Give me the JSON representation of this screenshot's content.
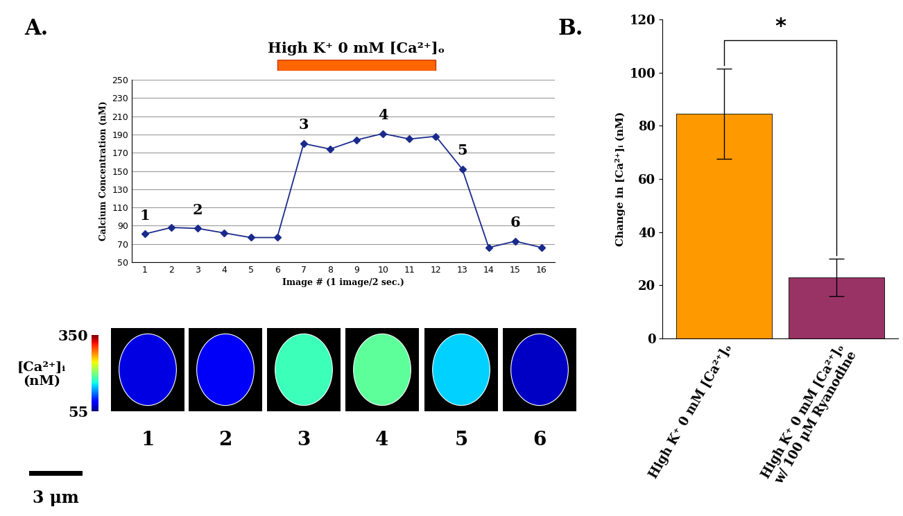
{
  "chart_data": [
    {
      "type": "line",
      "panel_label": "A.",
      "x_label": "Image # (1 image/2 sec.)",
      "y_label": "Calcium Concentration (nM)",
      "x": [
        1,
        2,
        3,
        4,
        5,
        6,
        7,
        8,
        9,
        10,
        11,
        12,
        13,
        14,
        15,
        16
      ],
      "values": [
        81,
        88,
        87,
        82,
        77,
        77,
        180,
        174,
        184,
        191,
        185,
        188,
        152,
        66,
        73,
        66
      ],
      "color": "#1a2a8c",
      "marker": "diamond",
      "line_style": "solid",
      "xlim": [
        0.5,
        16.5
      ],
      "xticks": [
        1,
        2,
        3,
        4,
        5,
        6,
        7,
        8,
        9,
        10,
        11,
        12,
        13,
        14,
        15,
        16
      ],
      "ylim": [
        50,
        250
      ],
      "yticks": [
        50,
        70,
        90,
        110,
        130,
        150,
        170,
        190,
        210,
        230,
        250
      ],
      "grid": true,
      "stimulus": {
        "label": "High K⁺ 0 mM [Ca²⁺]ₒ",
        "start": 6,
        "end": 12,
        "color": "#ff6600"
      },
      "point_labels": [
        {
          "text": "1",
          "x": 1
        },
        {
          "text": "2",
          "x": 3
        },
        {
          "text": "3",
          "x": 7
        },
        {
          "text": "4",
          "x": 10
        },
        {
          "text": "5",
          "x": 13
        },
        {
          "text": "6",
          "x": 15
        }
      ],
      "colorbar": {
        "label": "[Ca²⁺]ᵢ\n(nM)",
        "range": [
          55,
          350
        ],
        "ticks": [
          55,
          350
        ]
      },
      "scale_bar": {
        "label": "3 μm"
      }
    },
    {
      "type": "bar",
      "panel_label": "B.",
      "y_label": "Change in [Ca²⁺]ᵢ (nM)",
      "categories": [
        "High K⁺ 0 mM [Ca²⁺]ₒ",
        "High K⁺ 0 mM [Ca²⁺]ₒ\nw/ 100 μM Ryanodine"
      ],
      "values": [
        84.5,
        23
      ],
      "errors": [
        17,
        7
      ],
      "colors": [
        "#ff9900",
        "#993366"
      ],
      "ylim": [
        0,
        120
      ],
      "yticks": [
        0,
        20,
        40,
        60,
        80,
        100,
        120
      ],
      "significance": {
        "between": [
          0,
          1
        ],
        "label": "*"
      }
    }
  ]
}
